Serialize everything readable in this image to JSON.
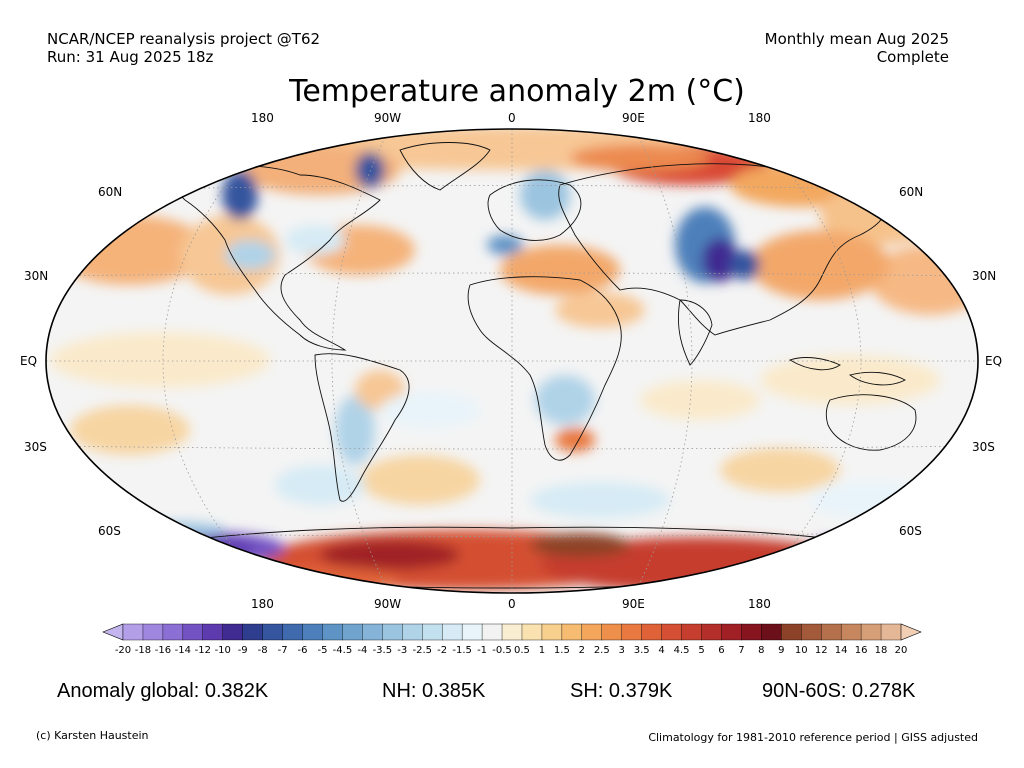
{
  "header": {
    "source_line1": "NCAR/NCEP reanalysis project @T62",
    "source_line2": "Run: 31 Aug 2025 18z",
    "period_line1": "Monthly mean Aug 2025",
    "period_line2": "Complete"
  },
  "title": "Temperature anomaly 2m (°C)",
  "longitude_labels": [
    "180",
    "90W",
    "0",
    "90E",
    "180"
  ],
  "latitude_labels": [
    "60N",
    "30N",
    "EQ",
    "30S",
    "60S"
  ],
  "colorbar": {
    "labels": [
      "-20",
      "-18",
      "-16",
      "-14",
      "-12",
      "-10",
      "-9",
      "-8",
      "-7",
      "-6",
      "-5",
      "-4.5",
      "-4",
      "-3.5",
      "-3",
      "-2.5",
      "-2",
      "-1.5",
      "-1",
      "-0.5",
      "0.5",
      "1",
      "1.5",
      "2",
      "2.5",
      "3",
      "3.5",
      "4",
      "4.5",
      "5",
      "6",
      "7",
      "8",
      "9",
      "10",
      "12",
      "14",
      "16",
      "18",
      "20"
    ],
    "colors": [
      "#c4b5ef",
      "#b39ee8",
      "#9f86df",
      "#8b6fd4",
      "#7352c4",
      "#5d3aae",
      "#3f2b92",
      "#2f3d8f",
      "#35559f",
      "#3f6bae",
      "#4d80bb",
      "#5e93c6",
      "#70a4cf",
      "#85b4d8",
      "#9bc4e0",
      "#b0d3e8",
      "#c3e0ee",
      "#d6ebf5",
      "#e8f4fa",
      "#f2f2f2",
      "#faeed2",
      "#f9e1b0",
      "#f7d08e",
      "#f5bc72",
      "#f3a65c",
      "#ef8f4c",
      "#e97841",
      "#e06238",
      "#d44f33",
      "#c63e2e",
      "#b42e2a",
      "#a02026",
      "#861520",
      "#6b0f1a",
      "#8c4228",
      "#a25a3a",
      "#b5704c",
      "#c6875f",
      "#d69f78",
      "#e4b896",
      "#f0cfb5"
    ]
  },
  "stats": {
    "global": "Anomaly global: 0.382K",
    "nh": "NH: 0.385K",
    "sh": "SH: 0.379K",
    "arctic": "90N-60S: 0.278K"
  },
  "footer": {
    "credit": "(c) Karsten Haustein",
    "note": "Climatology for 1981-2010 reference period | GISS adjusted"
  }
}
